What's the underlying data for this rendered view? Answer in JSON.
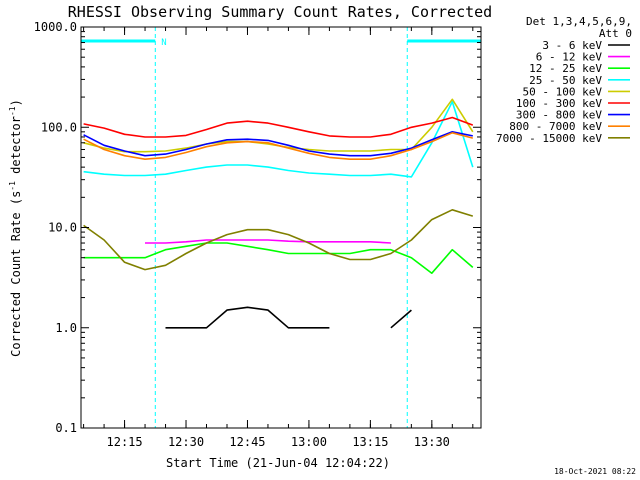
{
  "chart_data": {
    "type": "line",
    "title": "RHESSI Observing Summary Count Rates, Corrected",
    "xlabel": "Start Time (21-Jun-04 12:04:22)",
    "ylabel": "Corrected Count Rate (s-1 detector-1)",
    "ylabel_parts": {
      "main": "Corrected Count Rate (s",
      "exp1": "-1",
      "mid": " detector",
      "exp2": "-1",
      "end": ")"
    },
    "yscale": "log",
    "ylim": [
      0.1,
      1000
    ],
    "xlim": [
      "12:04:22",
      "13:42:00"
    ],
    "xticks": [
      "12:15",
      "12:30",
      "12:45",
      "13:00",
      "13:15",
      "13:30"
    ],
    "yticks": [
      "0.1",
      "1.0",
      "10.0",
      "100.0",
      "1000.0"
    ],
    "legend_header": [
      "Det 1,3,4,5,6,9,",
      "Att 0"
    ],
    "legend_position": "right",
    "night_marker_label": "N",
    "night_intervals": [
      [
        "12:04:22",
        "12:22:30"
      ],
      [
        "13:24:00",
        "13:42:00"
      ]
    ],
    "x": [
      "12:05",
      "12:10",
      "12:15",
      "12:20",
      "12:25",
      "12:30",
      "12:35",
      "12:40",
      "12:45",
      "12:50",
      "12:55",
      "13:00",
      "13:05",
      "13:10",
      "13:15",
      "13:20",
      "13:25",
      "13:30",
      "13:35",
      "13:40"
    ],
    "series": [
      {
        "name": "3 - 6 keV",
        "color": "#000000",
        "values": [
          null,
          null,
          null,
          null,
          1.0,
          1.0,
          1.0,
          1.5,
          1.6,
          1.5,
          1.0,
          1.0,
          1.0,
          null,
          null,
          1.0,
          1.5,
          null,
          null,
          null
        ]
      },
      {
        "name": "6 - 12 keV",
        "color": "#ff00ff",
        "values": [
          null,
          null,
          null,
          7.0,
          7.0,
          7.2,
          7.5,
          7.5,
          7.5,
          7.5,
          7.3,
          7.2,
          7.2,
          7.2,
          7.2,
          7.0,
          null,
          null,
          null,
          null
        ]
      },
      {
        "name": "12 - 25 keV",
        "color": "#00ff00",
        "values": [
          5.0,
          5.0,
          5.0,
          5.0,
          6.0,
          6.5,
          7.0,
          7.0,
          6.5,
          6.0,
          5.5,
          5.5,
          5.5,
          5.5,
          6.0,
          6.0,
          5.0,
          3.5,
          6.0,
          4.0
        ]
      },
      {
        "name": "25 - 50 keV",
        "color": "#00ffff",
        "values": [
          36,
          34,
          33,
          33,
          34,
          37,
          40,
          42,
          42,
          40,
          37,
          35,
          34,
          33,
          33,
          34,
          32,
          70,
          180,
          40
        ]
      },
      {
        "name": "50 - 100 keV",
        "color": "#cccc00",
        "values": [
          70,
          62,
          57,
          57,
          58,
          62,
          68,
          72,
          72,
          68,
          63,
          60,
          58,
          58,
          58,
          60,
          60,
          100,
          190,
          90
        ]
      },
      {
        "name": "100 - 300 keV",
        "color": "#ff0000",
        "values": [
          108,
          98,
          85,
          80,
          80,
          83,
          95,
          110,
          115,
          110,
          100,
          90,
          82,
          80,
          80,
          85,
          100,
          110,
          125,
          105
        ]
      },
      {
        "name": "300 - 800 keV",
        "color": "#0000ff",
        "values": [
          84,
          66,
          58,
          52,
          54,
          60,
          68,
          75,
          76,
          74,
          66,
          58,
          54,
          52,
          52,
          55,
          62,
          75,
          90,
          82
        ]
      },
      {
        "name": "800 - 7000 keV",
        "color": "#ff8000",
        "values": [
          76,
          60,
          52,
          48,
          50,
          56,
          64,
          70,
          72,
          70,
          62,
          55,
          50,
          48,
          48,
          52,
          60,
          72,
          88,
          78
        ]
      },
      {
        "name": "7000 - 15000 keV",
        "color": "#808000",
        "values": [
          10.5,
          7.5,
          4.5,
          3.8,
          4.2,
          5.5,
          7.0,
          8.5,
          9.5,
          9.5,
          8.5,
          7.0,
          5.5,
          4.8,
          4.8,
          5.5,
          7.5,
          12.0,
          15.0,
          13.0
        ]
      }
    ]
  },
  "footer": {
    "timestamp": "18-Oct-2021 08:22"
  }
}
